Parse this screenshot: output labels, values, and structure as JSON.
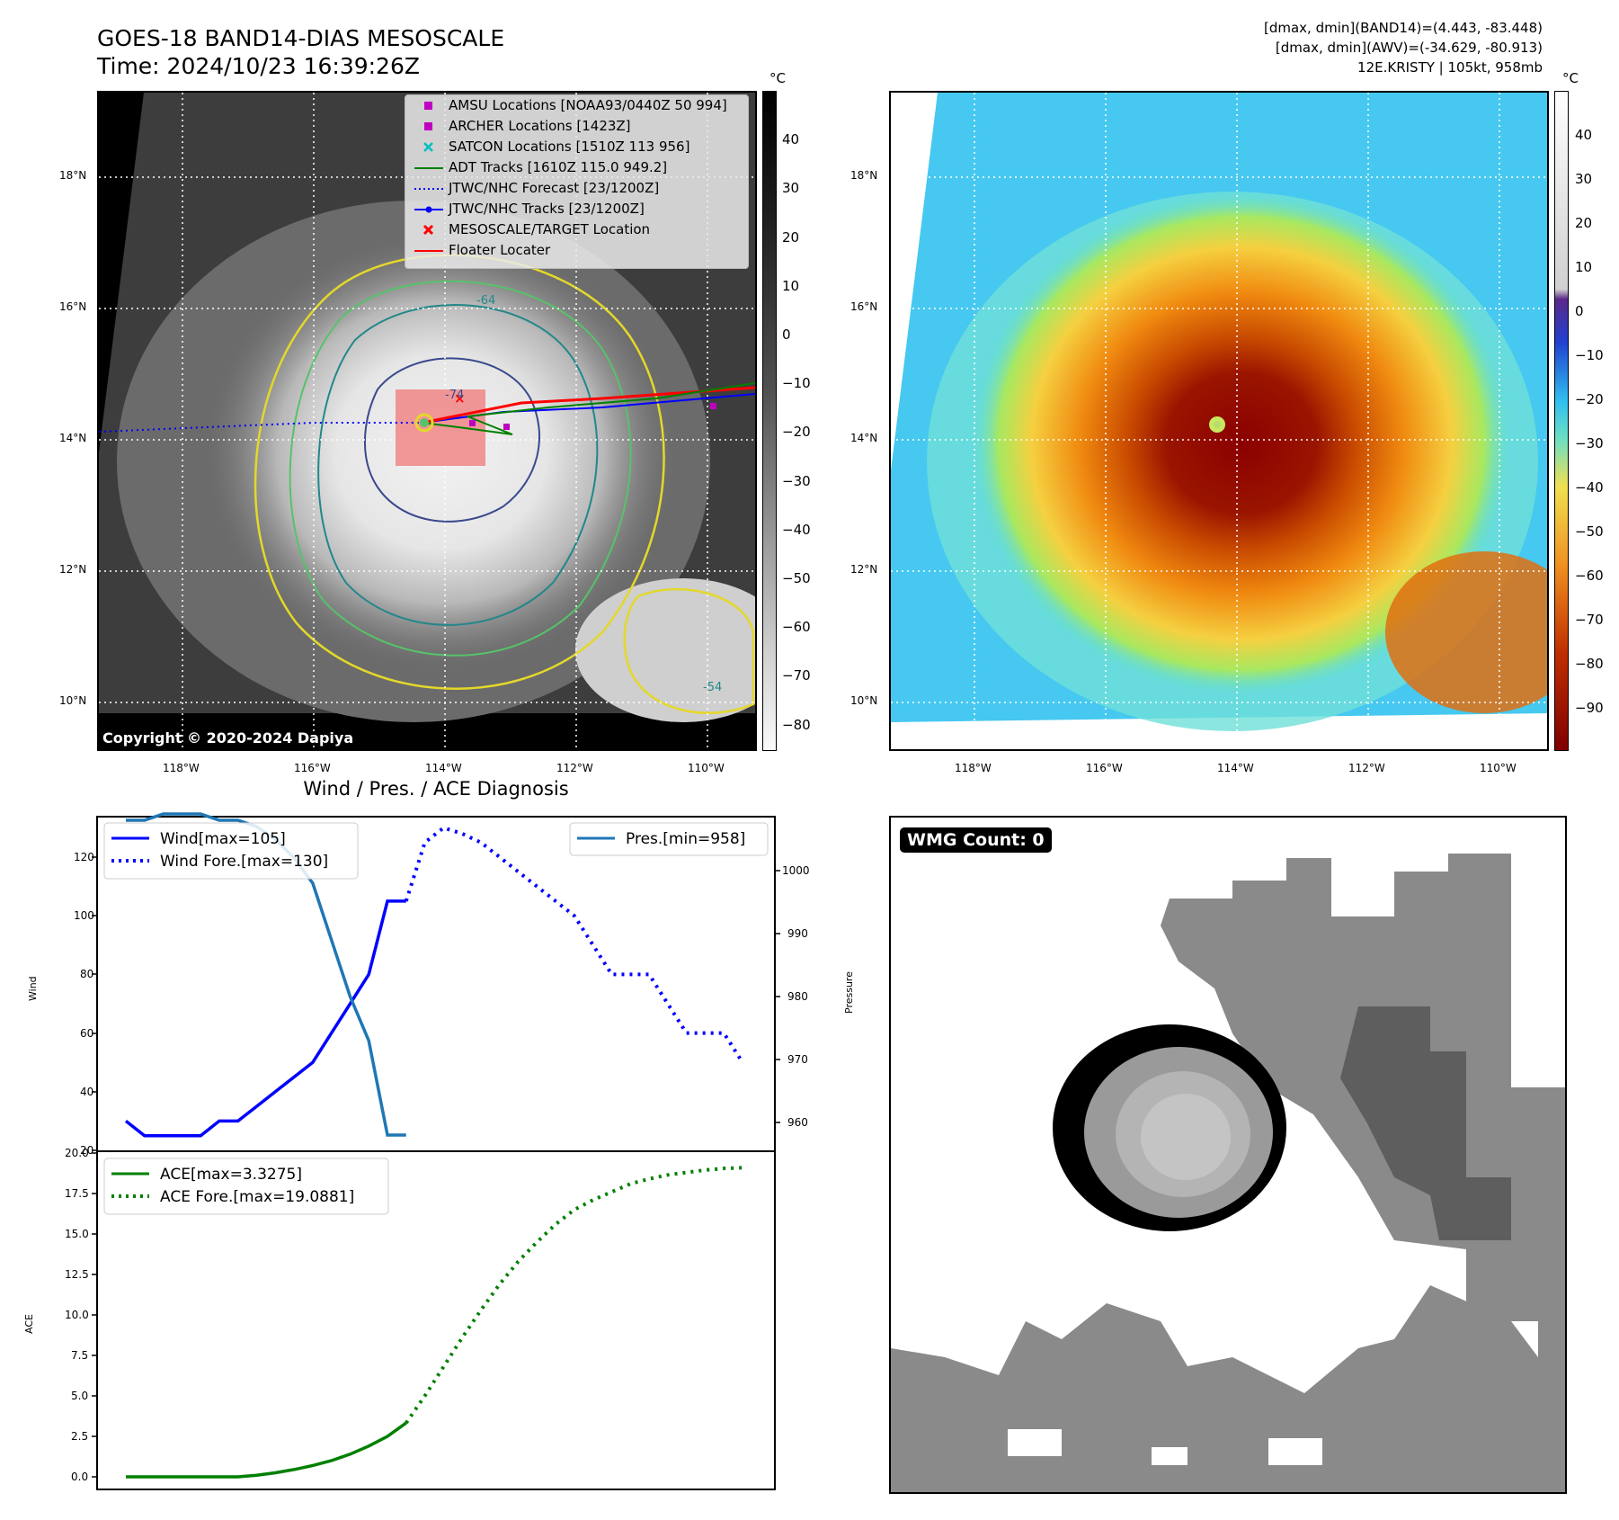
{
  "header": {
    "title_line1": "GOES-18 BAND14-DIAS MESOSCALE",
    "title_line2": "Time: 2024/10/23 16:39:26Z",
    "stats_line1": "[dmax, dmin](BAND14)=(4.443, -83.448)",
    "stats_line2": "[dmax, dmin](AWV)=(-34.629, -80.913)",
    "stats_line3": "12E.KRISTY | 105kt, 958mb"
  },
  "map_axes": {
    "lat_labels": [
      "18°N",
      "16°N",
      "14°N",
      "12°N",
      "10°N"
    ],
    "lon_labels": [
      "118°W",
      "116°W",
      "114°W",
      "112°W",
      "110°W"
    ],
    "copyright": "Copyright © 2020-2024 Dapiya",
    "contour_labels": [
      "-64",
      "-74",
      "-54"
    ]
  },
  "map_legend": [
    {
      "label": "AMSU Locations [NOAA93/0440Z 50 994]",
      "symbol": "magenta-square",
      "color": "#c000c0"
    },
    {
      "label": "ARCHER Locations [1423Z]",
      "symbol": "magenta-square",
      "color": "#c000c0"
    },
    {
      "label": "SATCON Locations [1510Z 113 956]",
      "symbol": "cyan-x",
      "color": "#00bfbf"
    },
    {
      "label": "ADT Tracks [1610Z 115.0 949.2]",
      "symbol": "green-line",
      "color": "#008000"
    },
    {
      "label": "JTWC/NHC Forecast [23/1200Z]",
      "symbol": "blue-dotted",
      "color": "#0000ff"
    },
    {
      "label": "JTWC/NHC Tracks [23/1200Z]",
      "symbol": "blue-line-dot",
      "color": "#0000ff"
    },
    {
      "label": "MESOSCALE/TARGET Location",
      "symbol": "red-x",
      "color": "#ff0000"
    },
    {
      "label": "Floater Locater",
      "symbol": "red-line",
      "color": "#ff0000"
    }
  ],
  "colorbar_left": {
    "unit": "°C",
    "ticks": [
      "40",
      "30",
      "20",
      "10",
      "0",
      "−10",
      "−20",
      "−30",
      "−40",
      "−50",
      "−60",
      "−70",
      "−80"
    ]
  },
  "colorbar_right": {
    "unit": "°C",
    "ticks": [
      "40",
      "30",
      "20",
      "10",
      "0",
      "−10",
      "−20",
      "−30",
      "−40",
      "−50",
      "−60",
      "−70",
      "−80",
      "−90"
    ]
  },
  "chart_data": [
    {
      "type": "line",
      "title": "Wind / Pres. / ACE Diagnosis",
      "ylabel": "Wind",
      "ylabel_right": "Pressure",
      "ylim": [
        20,
        134
      ],
      "ylim_right": [
        955,
        1009
      ],
      "yticks": [
        "120",
        "100",
        "80",
        "60",
        "40",
        "20"
      ],
      "yticks_right": [
        "1000",
        "990",
        "980",
        "970",
        "960"
      ],
      "x": [
        0,
        1,
        2,
        3,
        4,
        5,
        6,
        7,
        8,
        9,
        10,
        11,
        12,
        13,
        14,
        15,
        16,
        17,
        18,
        19,
        20,
        21,
        22,
        23,
        24,
        25,
        26,
        27,
        28,
        29,
        30,
        31,
        32,
        33
      ],
      "series": [
        {
          "name": "Wind[max=105]",
          "style": "solid",
          "color": "#0000ff",
          "x": [
            0,
            1,
            2,
            3,
            4,
            5,
            6,
            7,
            8,
            9,
            10,
            11,
            12,
            13,
            14,
            15
          ],
          "values": [
            30,
            25,
            25,
            25,
            25,
            30,
            30,
            35,
            40,
            45,
            50,
            60,
            70,
            80,
            105,
            105
          ]
        },
        {
          "name": "Wind Fore.[max=130]",
          "style": "dotted",
          "color": "#0000ff",
          "x": [
            15,
            16,
            17,
            18,
            19,
            20,
            21,
            22,
            23,
            24,
            25,
            26,
            27,
            28,
            29,
            30,
            31,
            32,
            33
          ],
          "values": [
            105,
            125,
            130,
            128,
            125,
            120,
            115,
            110,
            105,
            100,
            90,
            80,
            80,
            80,
            70,
            60,
            60,
            60,
            50
          ]
        },
        {
          "name": "Pres.[min=958]",
          "style": "solid",
          "color": "#1f77b4",
          "x": [
            0,
            1,
            2,
            3,
            4,
            5,
            6,
            7,
            8,
            9,
            10,
            11,
            12,
            13,
            14,
            15
          ],
          "values": [
            1008,
            1008,
            1009,
            1009,
            1009,
            1008,
            1008,
            1007,
            1005,
            1002,
            998,
            989,
            980,
            973,
            958,
            958
          ]
        }
      ]
    },
    {
      "type": "line",
      "ylabel": "ACE",
      "ylim": [
        -0.8,
        20
      ],
      "yticks": [
        "20.0",
        "17.5",
        "15.0",
        "12.5",
        "10.0",
        "7.5",
        "5.0",
        "2.5",
        "0.0"
      ],
      "series": [
        {
          "name": "ACE[max=3.3275]",
          "style": "solid",
          "color": "#008000",
          "x": [
            0,
            1,
            2,
            3,
            4,
            5,
            6,
            7,
            8,
            9,
            10,
            11,
            12,
            13,
            14,
            15
          ],
          "values": [
            0,
            0,
            0,
            0,
            0,
            0,
            0,
            0.1,
            0.25,
            0.45,
            0.7,
            1.0,
            1.4,
            1.9,
            2.5,
            3.3275
          ]
        },
        {
          "name": "ACE Fore.[max=19.0881]",
          "style": "dotted",
          "color": "#008000",
          "x": [
            15,
            16,
            17,
            18,
            19,
            20,
            21,
            22,
            23,
            24,
            25,
            26,
            27,
            28,
            29,
            30,
            31,
            32,
            33
          ],
          "values": [
            3.3275,
            5.0,
            6.8,
            8.6,
            10.3,
            11.9,
            13.3,
            14.5,
            15.6,
            16.5,
            17.1,
            17.6,
            18.1,
            18.4,
            18.65,
            18.8,
            18.95,
            19.05,
            19.0881
          ]
        }
      ]
    }
  ],
  "wmg": {
    "badge": "WMG Count: 0"
  }
}
